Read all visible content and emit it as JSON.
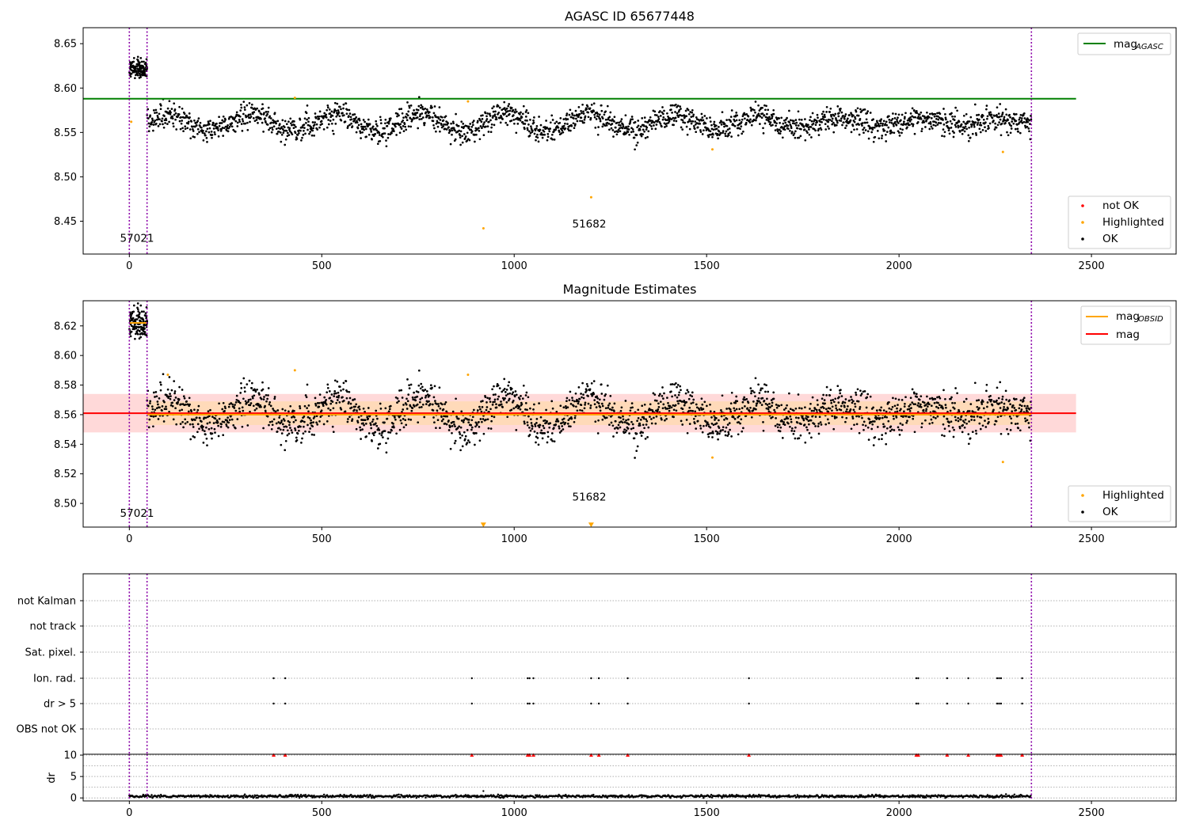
{
  "figure": {
    "width": 1500,
    "height": 1050
  },
  "colors": {
    "ok": "#000000",
    "highlighted": "#ffa500",
    "not_ok": "#ff0000",
    "mag_agasc": "#008000",
    "mag_obsid": "#ffa500",
    "mag": "#ff0000",
    "obs_boundary": "#8b00a8",
    "grid": "#b0b0b0",
    "band_mag": "#ffcccc",
    "band_obsid": "#ffd9b0"
  },
  "chart_data": [
    {
      "type": "scatter",
      "title": "AGASC ID 65677448",
      "xlim": [
        -120,
        2720
      ],
      "ylim": [
        8.413,
        8.668
      ],
      "xticks": [
        0,
        500,
        1000,
        1500,
        2000,
        2500
      ],
      "xtick_labels": [
        "0",
        "500",
        "1000",
        "1500",
        "2000",
        "2500"
      ],
      "yticks": [
        8.45,
        8.5,
        8.55,
        8.6,
        8.65
      ],
      "ytick_labels": [
        "8.45",
        "8.50",
        "8.55",
        "8.60",
        "8.65"
      ],
      "obs_boundaries": [
        0,
        46,
        2344
      ],
      "obs_labels": [
        {
          "text": "57021",
          "x": 20,
          "y": 8.427
        },
        {
          "text": "51682",
          "x": 1195,
          "y": 8.443
        }
      ],
      "series": [
        {
          "name": "OK",
          "marker": "dot",
          "count": 2344,
          "segments": [
            {
              "x_range": [
                0,
                46
              ],
              "mean": 8.622,
              "noise": 0.006
            },
            {
              "x_range": [
                46,
                2344
              ],
              "mean": 8.561,
              "noise": 0.007,
              "wave_amp": 0.007,
              "wave_period": 215
            }
          ]
        },
        {
          "name": "Highlighted",
          "marker": "dot",
          "points": [
            [
              5,
              8.562
            ],
            [
              430,
              8.589
            ],
            [
              880,
              8.585
            ],
            [
              920,
              8.442
            ],
            [
              1200,
              8.477
            ],
            [
              1515,
              8.531
            ],
            [
              2270,
              8.528
            ]
          ]
        },
        {
          "name": "not OK",
          "marker": "dot",
          "points": []
        }
      ],
      "lines": [
        {
          "name": "mag_AGASC",
          "y": 8.588,
          "x_range": [
            -120,
            2460
          ]
        }
      ],
      "legends": [
        {
          "placement": "top-right",
          "entries": [
            {
              "label": "mag",
              "sub": "AGASC",
              "kind": "line",
              "color": "#008000"
            }
          ]
        },
        {
          "placement": "lower-right",
          "entries": [
            {
              "label": "not OK",
              "kind": "dot",
              "color": "#ff0000"
            },
            {
              "label": "Highlighted",
              "kind": "dot",
              "color": "#ffa500"
            },
            {
              "label": "OK",
              "kind": "dot",
              "color": "#000000"
            }
          ]
        }
      ]
    },
    {
      "type": "scatter",
      "title": "Magnitude Estimates",
      "xlim": [
        -120,
        2720
      ],
      "ylim": [
        8.484,
        8.637
      ],
      "xticks": [
        0,
        500,
        1000,
        1500,
        2000,
        2500
      ],
      "xtick_labels": [
        "0",
        "500",
        "1000",
        "1500",
        "2000",
        "2500"
      ],
      "yticks": [
        8.5,
        8.52,
        8.54,
        8.56,
        8.58,
        8.6,
        8.62
      ],
      "ytick_labels": [
        "8.50",
        "8.52",
        "8.54",
        "8.56",
        "8.58",
        "8.60",
        "8.62"
      ],
      "obs_boundaries": [
        0,
        46,
        2344
      ],
      "obs_labels": [
        {
          "text": "57021",
          "x": 20,
          "y": 8.491
        },
        {
          "text": "51682",
          "x": 1195,
          "y": 8.502
        }
      ],
      "bands": [
        {
          "name": "mag",
          "x_range": [
            -120,
            2460
          ],
          "y_range": [
            8.548,
            8.574
          ]
        },
        {
          "name": "mag_OBSID",
          "x_range": [
            46,
            2344
          ],
          "y_range": [
            8.553,
            8.569
          ]
        }
      ],
      "series": [
        {
          "name": "OK",
          "marker": "dot",
          "same_as_panel": 0
        },
        {
          "name": "Highlighted",
          "marker": "dot",
          "points": [
            [
              100,
              8.587
            ],
            [
              430,
              8.59
            ],
            [
              880,
              8.587
            ],
            [
              1515,
              8.531
            ],
            [
              2270,
              8.528
            ]
          ]
        },
        {
          "name": "Highlighted (below axis)",
          "marker": "triangle-down",
          "points": [
            [
              920,
              8.4855
            ],
            [
              1200,
              8.4855
            ]
          ]
        }
      ],
      "lines": [
        {
          "name": "mag",
          "y": 8.561,
          "x_range": [
            -120,
            2460
          ],
          "color": "#ff0000"
        },
        {
          "name": "mag_OBSID",
          "y": 8.622,
          "x_range": [
            0,
            46
          ],
          "color": "#ffa500"
        },
        {
          "name": "mag_OBSID",
          "y": 8.56,
          "x_range": [
            46,
            2344
          ],
          "color": "#ffa500"
        }
      ],
      "legends": [
        {
          "placement": "top-right",
          "entries": [
            {
              "label": "mag",
              "sub": "OBSID",
              "kind": "line",
              "color": "#ffa500"
            },
            {
              "label": "mag",
              "kind": "line",
              "color": "#ff0000"
            }
          ]
        },
        {
          "placement": "lower-right",
          "entries": [
            {
              "label": "Highlighted",
              "kind": "dot",
              "color": "#ffa500"
            },
            {
              "label": "OK",
              "kind": "dot",
              "color": "#000000"
            }
          ]
        }
      ]
    },
    {
      "type": "scatter",
      "title": "",
      "xlim": [
        -120,
        2720
      ],
      "flag_rows": [
        "not Kalman",
        "not track",
        "Sat. pixel.",
        "Ion. rad.",
        "dr > 5",
        "OBS not OK"
      ],
      "flag_x": {
        "Ion. rad.": [
          375,
          405,
          890,
          1035,
          1040,
          1050,
          1200,
          1220,
          1295,
          1610,
          2045,
          2050,
          2125,
          2180,
          2255,
          2260,
          2265,
          2320
        ],
        "dr > 5": [
          375,
          405,
          890,
          1035,
          1040,
          1050,
          1200,
          1220,
          1295,
          1610,
          2045,
          2050,
          2125,
          2180,
          2255,
          2260,
          2265,
          2320
        ]
      },
      "obs_boundaries": [
        0,
        46,
        2344
      ]
    },
    {
      "type": "scatter",
      "title": "",
      "ylabel": "dr",
      "xlim": [
        -120,
        2720
      ],
      "ylim": [
        -0.7,
        10.2
      ],
      "xticks": [
        0,
        500,
        1000,
        1500,
        2000,
        2500
      ],
      "xtick_labels": [
        "0",
        "500",
        "1000",
        "1500",
        "2000",
        "2500"
      ],
      "yticks": [
        0,
        5,
        10
      ],
      "ytick_labels": [
        "0",
        "5",
        "10"
      ],
      "grid_y": [
        0,
        2.5,
        5,
        7.5,
        10
      ],
      "obs_boundaries": [
        0,
        46,
        2344
      ],
      "series": [
        {
          "name": "dr",
          "marker": "dot",
          "count": 2344,
          "mean": 0.4,
          "noise": 0.25
        },
        {
          "name": "dr > 10 (clipped)",
          "marker": "triangle-up",
          "y": 10,
          "x": [
            375,
            405,
            890,
            1035,
            1040,
            1050,
            1200,
            1220,
            1295,
            1610,
            2045,
            2050,
            2125,
            2180,
            2255,
            2260,
            2265,
            2320
          ]
        }
      ]
    }
  ]
}
